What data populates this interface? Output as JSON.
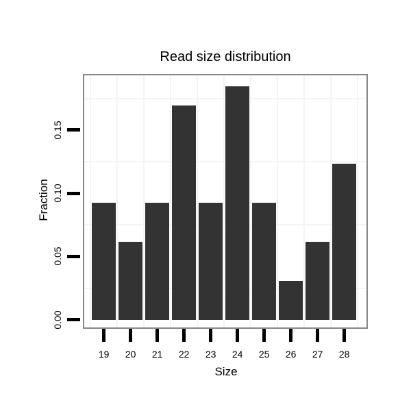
{
  "chart_data": {
    "type": "bar",
    "title": "Read size distribution",
    "xlabel": "Size",
    "ylabel": "Fraction",
    "categories": [
      "19",
      "20",
      "21",
      "22",
      "23",
      "24",
      "25",
      "26",
      "27",
      "28"
    ],
    "values": [
      0.0923,
      0.0615,
      0.0923,
      0.1692,
      0.0923,
      0.1846,
      0.0923,
      0.0308,
      0.0615,
      0.1231
    ],
    "ytick_labels": [
      "0.00",
      "0.05",
      "0.10",
      "0.15"
    ],
    "ytick_values": [
      0.0,
      0.05,
      0.1,
      0.15
    ],
    "ylim": [
      -0.007,
      0.1945
    ],
    "minor_gridlines_y": [
      0.025,
      0.075,
      0.125,
      0.175
    ],
    "grid": "faint minor horizontal lines and vertical lines at category boundaries",
    "legend": "none",
    "colors": {
      "bar": "#333333",
      "panel_border": "#888888",
      "grid": "#f4f4f4",
      "tick": "#000000",
      "text": "#000000",
      "background": "#ffffff"
    }
  }
}
